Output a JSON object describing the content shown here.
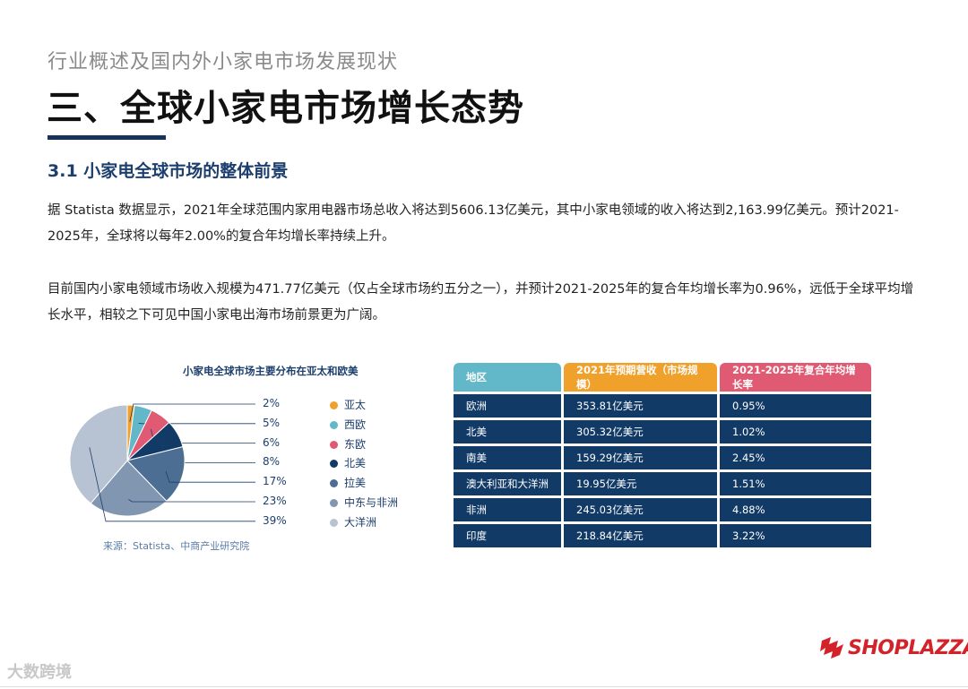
{
  "header": {
    "subtitle": "行业概述及国内外小家电市场发展现状",
    "title": "三、全球小家电市场增长态势",
    "section": "3.1 小家电全球市场的整体前景"
  },
  "paragraphs": {
    "p1": "据 Statista 数据显示，2021年全球范围内家用电器市场总收入将达到5606.13亿美元，其中小家电领域的收入将达到2,163.99亿美元。预计2021-2025年，全球将以每年2.00%的复合年均增长率持续上升。",
    "p2": "目前国内小家电领域市场收入规模为471.77亿美元（仅占全球市场约五分之一），并预计2021-2025年的复合年均增长率为0.96%，远低于全球平均增长水平，相较之下可见中国小家电出海市场前景更为广阔。"
  },
  "chart_data": {
    "type": "pie",
    "title": "小家电全球市场主要分布在亚太和欧美",
    "slices": [
      {
        "label": "亚太",
        "value": 2,
        "display": "2%",
        "color": "#f0a12b"
      },
      {
        "label": "西欧",
        "value": 5,
        "display": "5%",
        "color": "#62b7c9"
      },
      {
        "label": "东欧",
        "value": 6,
        "display": "6%",
        "color": "#e05a73"
      },
      {
        "label": "北美",
        "value": 8,
        "display": "8%",
        "color": "#123a66"
      },
      {
        "label": "拉美",
        "value": 17,
        "display": "17%",
        "color": "#4d6e93"
      },
      {
        "label": "中东与非洲",
        "value": 23,
        "display": "23%",
        "color": "#8196b1"
      },
      {
        "label": "大洋洲",
        "value": 39,
        "display": "39%",
        "color": "#b7c2d2"
      }
    ],
    "legend_position": "right",
    "source": "来源：Statista、中商产业研究院"
  },
  "table": {
    "headers": [
      "地区",
      "2021年预期营收（市场规模）",
      "2021-2025年复合年均增长率"
    ],
    "rows": [
      [
        "欧洲",
        "353.81亿美元",
        "0.95%"
      ],
      [
        "北美",
        "305.32亿美元",
        "1.02%"
      ],
      [
        "南美",
        "159.29亿美元",
        "2.45%"
      ],
      [
        "澳大利亚和大洋洲",
        "19.95亿美元",
        "1.51%"
      ],
      [
        "非洲",
        "245.03亿美元",
        "4.88%"
      ],
      [
        "印度",
        "218.84亿美元",
        "3.22%"
      ]
    ]
  },
  "brand": {
    "logo_text": "SHOPLAZZA",
    "logo_color": "#d3222a"
  },
  "watermark": "大数跨境"
}
